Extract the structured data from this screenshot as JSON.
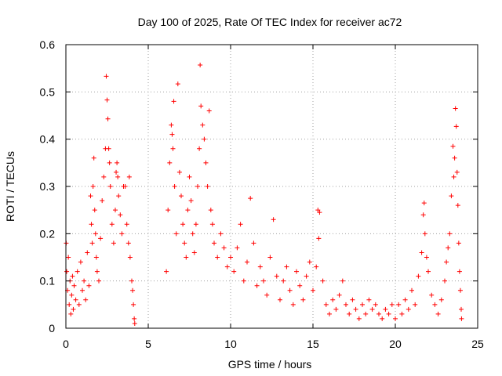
{
  "colors": {
    "series": "#ff0000",
    "grid": "#a0a0a0",
    "axis": "#000000",
    "background": "#ffffff"
  },
  "chart_data": {
    "type": "scatter",
    "title": "Day 100 of 2025, Rate Of TEC Index for receiver ac72",
    "xlabel": "GPS time / hours",
    "ylabel": "ROTI / TECUs",
    "xlim": [
      0,
      25
    ],
    "ylim": [
      0,
      0.6
    ],
    "xticks": [
      0,
      5,
      10,
      15,
      20,
      25
    ],
    "yticks": [
      0,
      0.1,
      0.2,
      0.3,
      0.4,
      0.5,
      0.6
    ],
    "xtick_labels": [
      "0",
      "5",
      "10",
      "15",
      "20",
      "25"
    ],
    "ytick_labels": [
      "0",
      "0.1",
      "0.2",
      "0.3",
      "0.4",
      "0.5",
      "0.6"
    ],
    "grid": true,
    "marker": "+",
    "series": [
      {
        "name": "ROTI",
        "points": [
          [
            0.02,
            0.18
          ],
          [
            0.05,
            0.12
          ],
          [
            0.1,
            0.08
          ],
          [
            0.15,
            0.15
          ],
          [
            0.2,
            0.05
          ],
          [
            0.25,
            0.1
          ],
          [
            0.3,
            0.03
          ],
          [
            0.35,
            0.07
          ],
          [
            0.4,
            0.11
          ],
          [
            0.45,
            0.04
          ],
          [
            0.5,
            0.09
          ],
          [
            0.6,
            0.06
          ],
          [
            0.7,
            0.12
          ],
          [
            0.8,
            0.05
          ],
          [
            0.9,
            0.14
          ],
          [
            1.0,
            0.08
          ],
          [
            1.1,
            0.1
          ],
          [
            1.2,
            0.06
          ],
          [
            1.3,
            0.16
          ],
          [
            1.4,
            0.09
          ],
          [
            1.5,
            0.28
          ],
          [
            1.55,
            0.22
          ],
          [
            1.6,
            0.18
          ],
          [
            1.65,
            0.3
          ],
          [
            1.7,
            0.36
          ],
          [
            1.75,
            0.25
          ],
          [
            1.8,
            0.2
          ],
          [
            1.85,
            0.15
          ],
          [
            1.9,
            0.12
          ],
          [
            2.0,
            0.1
          ],
          [
            2.1,
            0.19
          ],
          [
            2.2,
            0.27
          ],
          [
            2.3,
            0.32
          ],
          [
            2.4,
            0.38
          ],
          [
            2.45,
            0.533
          ],
          [
            2.5,
            0.483
          ],
          [
            2.55,
            0.443
          ],
          [
            2.6,
            0.38
          ],
          [
            2.65,
            0.35
          ],
          [
            2.7,
            0.3
          ],
          [
            2.8,
            0.22
          ],
          [
            2.9,
            0.18
          ],
          [
            3.0,
            0.25
          ],
          [
            3.05,
            0.33
          ],
          [
            3.1,
            0.35
          ],
          [
            3.15,
            0.32
          ],
          [
            3.2,
            0.28
          ],
          [
            3.3,
            0.24
          ],
          [
            3.4,
            0.2
          ],
          [
            3.5,
            0.3
          ],
          [
            3.6,
            0.3
          ],
          [
            3.7,
            0.22
          ],
          [
            3.8,
            0.18
          ],
          [
            3.85,
            0.32
          ],
          [
            3.9,
            0.15
          ],
          [
            4.0,
            0.1
          ],
          [
            4.05,
            0.08
          ],
          [
            4.1,
            0.05
          ],
          [
            4.15,
            0.02
          ],
          [
            4.18,
            0.01
          ],
          [
            6.1,
            0.12
          ],
          [
            6.2,
            0.25
          ],
          [
            6.3,
            0.35
          ],
          [
            6.4,
            0.43
          ],
          [
            6.45,
            0.41
          ],
          [
            6.5,
            0.38
          ],
          [
            6.55,
            0.48
          ],
          [
            6.6,
            0.3
          ],
          [
            6.7,
            0.2
          ],
          [
            6.8,
            0.517
          ],
          [
            6.9,
            0.33
          ],
          [
            7.0,
            0.28
          ],
          [
            7.1,
            0.22
          ],
          [
            7.2,
            0.18
          ],
          [
            7.3,
            0.15
          ],
          [
            7.4,
            0.25
          ],
          [
            7.5,
            0.32
          ],
          [
            7.6,
            0.27
          ],
          [
            7.7,
            0.2
          ],
          [
            7.8,
            0.16
          ],
          [
            7.9,
            0.22
          ],
          [
            8.0,
            0.3
          ],
          [
            8.1,
            0.38
          ],
          [
            8.15,
            0.557
          ],
          [
            8.2,
            0.47
          ],
          [
            8.3,
            0.43
          ],
          [
            8.4,
            0.4
          ],
          [
            8.5,
            0.35
          ],
          [
            8.6,
            0.3
          ],
          [
            8.7,
            0.46
          ],
          [
            8.8,
            0.25
          ],
          [
            8.9,
            0.22
          ],
          [
            9.0,
            0.18
          ],
          [
            9.2,
            0.15
          ],
          [
            9.4,
            0.2
          ],
          [
            9.6,
            0.17
          ],
          [
            9.8,
            0.13
          ],
          [
            10.0,
            0.15
          ],
          [
            10.2,
            0.12
          ],
          [
            10.4,
            0.17
          ],
          [
            10.6,
            0.22
          ],
          [
            10.8,
            0.1
          ],
          [
            11.0,
            0.14
          ],
          [
            11.2,
            0.275
          ],
          [
            11.4,
            0.18
          ],
          [
            11.6,
            0.09
          ],
          [
            11.8,
            0.13
          ],
          [
            12.0,
            0.1
          ],
          [
            12.2,
            0.07
          ],
          [
            12.4,
            0.15
          ],
          [
            12.6,
            0.23
          ],
          [
            12.8,
            0.11
          ],
          [
            13.0,
            0.06
          ],
          [
            13.2,
            0.1
          ],
          [
            13.4,
            0.13
          ],
          [
            13.6,
            0.08
          ],
          [
            13.8,
            0.05
          ],
          [
            14.0,
            0.12
          ],
          [
            14.2,
            0.09
          ],
          [
            14.4,
            0.06
          ],
          [
            14.6,
            0.11
          ],
          [
            14.8,
            0.14
          ],
          [
            15.0,
            0.08
          ],
          [
            15.2,
            0.13
          ],
          [
            15.3,
            0.25
          ],
          [
            15.35,
            0.19
          ],
          [
            15.4,
            0.245
          ],
          [
            15.6,
            0.1
          ],
          [
            15.8,
            0.05
          ],
          [
            16.0,
            0.03
          ],
          [
            16.2,
            0.06
          ],
          [
            16.4,
            0.04
          ],
          [
            16.6,
            0.07
          ],
          [
            16.8,
            0.1
          ],
          [
            17.0,
            0.05
          ],
          [
            17.2,
            0.03
          ],
          [
            17.4,
            0.06
          ],
          [
            17.6,
            0.04
          ],
          [
            17.8,
            0.02
          ],
          [
            18.0,
            0.05
          ],
          [
            18.2,
            0.03
          ],
          [
            18.4,
            0.06
          ],
          [
            18.6,
            0.04
          ],
          [
            18.8,
            0.05
          ],
          [
            19.0,
            0.03
          ],
          [
            19.2,
            0.02
          ],
          [
            19.4,
            0.04
          ],
          [
            19.6,
            0.03
          ],
          [
            19.8,
            0.05
          ],
          [
            20.0,
            0.02
          ],
          [
            20.2,
            0.05
          ],
          [
            20.4,
            0.03
          ],
          [
            20.6,
            0.06
          ],
          [
            20.8,
            0.04
          ],
          [
            21.0,
            0.08
          ],
          [
            21.2,
            0.05
          ],
          [
            21.4,
            0.11
          ],
          [
            21.6,
            0.16
          ],
          [
            21.7,
            0.24
          ],
          [
            21.75,
            0.265
          ],
          [
            21.8,
            0.2
          ],
          [
            21.9,
            0.15
          ],
          [
            22.0,
            0.12
          ],
          [
            22.2,
            0.07
          ],
          [
            22.4,
            0.05
          ],
          [
            22.6,
            0.03
          ],
          [
            22.8,
            0.06
          ],
          [
            23.0,
            0.1
          ],
          [
            23.1,
            0.14
          ],
          [
            23.2,
            0.17
          ],
          [
            23.3,
            0.2
          ],
          [
            23.4,
            0.28
          ],
          [
            23.5,
            0.385
          ],
          [
            23.55,
            0.32
          ],
          [
            23.6,
            0.36
          ],
          [
            23.65,
            0.465
          ],
          [
            23.7,
            0.427
          ],
          [
            23.75,
            0.33
          ],
          [
            23.8,
            0.26
          ],
          [
            23.85,
            0.18
          ],
          [
            23.9,
            0.12
          ],
          [
            23.95,
            0.08
          ],
          [
            24.0,
            0.04
          ],
          [
            24.02,
            0.02
          ]
        ]
      }
    ]
  }
}
